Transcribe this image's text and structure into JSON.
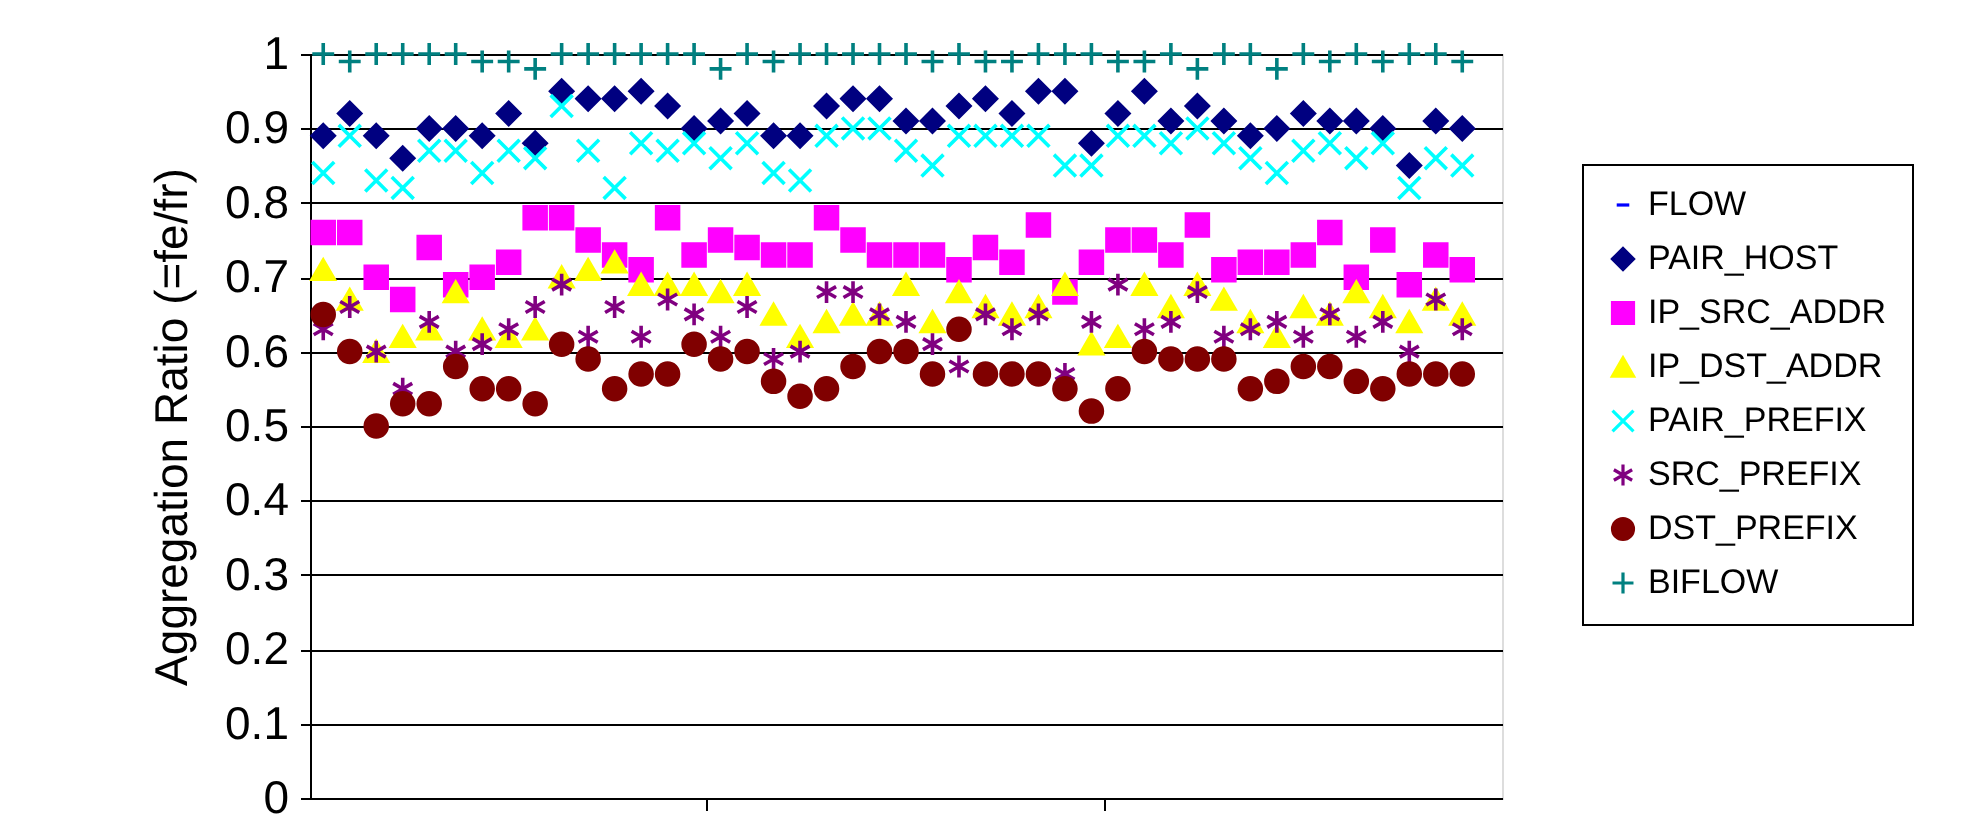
{
  "chart_data": {
    "type": "scatter",
    "ylabel": "Aggregation Ratio (=fe/fr)",
    "categories": [
      null,
      null,
      null,
      null,
      null,
      null,
      null,
      null,
      null,
      null,
      null,
      null,
      null,
      null,
      null,
      null,
      null,
      null,
      null,
      null,
      null,
      null,
      null,
      null,
      null,
      null,
      null,
      null,
      null,
      null,
      null,
      null,
      null,
      null,
      null,
      null,
      null,
      null,
      null,
      null,
      null,
      null,
      null,
      null,
      null
    ],
    "ylim": [
      0,
      1
    ],
    "yticks": [
      0,
      0.1,
      0.2,
      0.3,
      0.4,
      0.5,
      0.6,
      0.7,
      0.8,
      0.9,
      1
    ],
    "grid": "y",
    "legend": "right",
    "tick_labels": "y",
    "series": [
      {
        "name": "FLOW",
        "color": "#0000ff",
        "marker": "dash",
        "values": [
          null,
          null,
          null,
          null,
          null,
          null,
          null,
          null,
          null,
          null,
          null,
          null,
          null,
          null,
          null,
          null,
          null,
          null,
          null,
          null,
          null,
          null,
          null,
          null,
          null,
          null,
          null,
          null,
          null,
          null,
          null,
          null,
          null,
          null,
          null,
          null,
          null,
          null,
          null,
          null,
          null,
          null,
          null,
          null,
          null
        ]
      },
      {
        "name": "PAIR_HOST",
        "color": "#000080",
        "marker": "diamond",
        "values": [
          0.89,
          0.92,
          0.89,
          0.86,
          0.9,
          0.9,
          0.89,
          0.92,
          0.88,
          0.95,
          0.94,
          0.94,
          0.95,
          0.93,
          0.9,
          0.91,
          0.92,
          0.89,
          0.89,
          0.93,
          0.94,
          0.94,
          0.91,
          0.91,
          0.93,
          0.94,
          0.92,
          0.95,
          0.95,
          0.88,
          0.92,
          0.95,
          0.91,
          0.93,
          0.91,
          0.89,
          0.9,
          0.92,
          0.91,
          0.91,
          0.9,
          0.85,
          0.91,
          0.9,
          null
        ]
      },
      {
        "name": "IP_SRC_ADDR",
        "color": "#ff00ff",
        "marker": "square",
        "values": [
          0.76,
          0.76,
          0.7,
          0.67,
          0.74,
          0.69,
          0.7,
          0.72,
          0.78,
          0.78,
          0.75,
          0.73,
          0.71,
          0.78,
          0.73,
          0.75,
          0.74,
          0.73,
          0.73,
          0.78,
          0.75,
          0.73,
          0.73,
          0.73,
          0.71,
          0.74,
          0.72,
          0.77,
          0.68,
          0.72,
          0.75,
          0.75,
          0.73,
          0.77,
          0.71,
          0.72,
          0.72,
          0.73,
          0.76,
          0.7,
          0.75,
          0.69,
          0.73,
          0.71,
          null
        ]
      },
      {
        "name": "IP_DST_ADDR",
        "color": "#ffff00",
        "marker": "triangle",
        "values": [
          0.71,
          0.67,
          0.6,
          0.62,
          0.63,
          0.68,
          0.63,
          0.62,
          0.63,
          0.7,
          0.71,
          0.72,
          0.69,
          0.69,
          0.69,
          0.68,
          0.69,
          0.65,
          0.62,
          0.64,
          0.65,
          0.65,
          0.69,
          0.64,
          0.68,
          0.66,
          0.65,
          0.66,
          0.69,
          0.61,
          0.62,
          0.69,
          0.66,
          0.69,
          0.67,
          0.64,
          0.62,
          0.66,
          0.65,
          0.68,
          0.66,
          0.64,
          0.67,
          0.65,
          null
        ]
      },
      {
        "name": "PAIR_PREFIX",
        "color": "#00ffff",
        "marker": "x",
        "values": [
          0.84,
          0.89,
          0.83,
          0.82,
          0.87,
          0.87,
          0.84,
          0.87,
          0.86,
          0.93,
          0.87,
          0.82,
          0.88,
          0.87,
          0.88,
          0.86,
          0.88,
          0.84,
          0.83,
          0.89,
          0.9,
          0.9,
          0.87,
          0.85,
          0.89,
          0.89,
          0.89,
          0.89,
          0.85,
          0.85,
          0.89,
          0.89,
          0.88,
          0.9,
          0.88,
          0.86,
          0.84,
          0.87,
          0.88,
          0.86,
          0.88,
          0.82,
          0.86,
          0.85,
          null
        ]
      },
      {
        "name": "SRC_PREFIX",
        "color": "#800080",
        "marker": "cross",
        "values": [
          0.63,
          0.66,
          0.6,
          0.55,
          0.64,
          0.6,
          0.61,
          0.63,
          0.66,
          0.69,
          0.62,
          0.66,
          0.62,
          0.67,
          0.65,
          0.62,
          0.66,
          0.59,
          0.6,
          0.68,
          0.68,
          0.65,
          0.64,
          0.61,
          0.58,
          0.65,
          0.63,
          0.65,
          0.57,
          0.64,
          0.69,
          0.63,
          0.64,
          0.68,
          0.62,
          0.63,
          0.64,
          0.62,
          0.65,
          0.62,
          0.64,
          0.6,
          0.67,
          0.63,
          null
        ]
      },
      {
        "name": "DST_PREFIX",
        "color": "#800000",
        "marker": "circle",
        "values": [
          0.65,
          0.6,
          0.5,
          0.53,
          0.53,
          0.58,
          0.55,
          0.55,
          0.53,
          0.61,
          0.59,
          0.55,
          0.57,
          0.57,
          0.61,
          0.59,
          0.6,
          0.56,
          0.54,
          0.55,
          0.58,
          0.6,
          0.6,
          0.57,
          0.63,
          0.57,
          0.57,
          0.57,
          0.55,
          0.52,
          0.55,
          0.6,
          0.59,
          0.59,
          0.59,
          0.55,
          0.56,
          0.58,
          0.58,
          0.56,
          0.55,
          0.57,
          0.57,
          0.57,
          null
        ]
      },
      {
        "name": "BIFLOW",
        "color": "#008080",
        "marker": "plus",
        "values": [
          1.0,
          0.99,
          1.0,
          1.0,
          1.0,
          1.0,
          0.99,
          0.99,
          0.98,
          1.0,
          1.0,
          1.0,
          1.0,
          1.0,
          1.0,
          0.98,
          1.0,
          0.99,
          1.0,
          1.0,
          1.0,
          1.0,
          1.0,
          0.99,
          1.0,
          0.99,
          0.99,
          1.0,
          1.0,
          1.0,
          0.99,
          0.99,
          1.0,
          0.98,
          1.0,
          1.0,
          0.98,
          1.0,
          0.99,
          1.0,
          0.99,
          1.0,
          1.0,
          0.99,
          null
        ]
      }
    ]
  }
}
